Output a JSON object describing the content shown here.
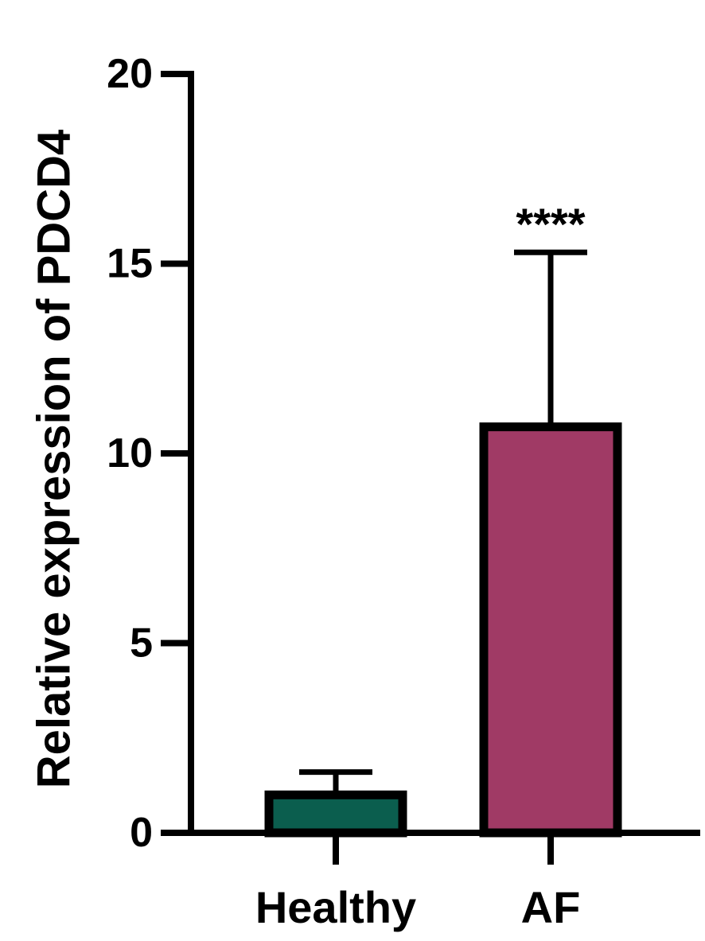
{
  "chart_data": {
    "type": "bar",
    "title": "",
    "xlabel": "",
    "ylabel": "Relative expression of PDCD4",
    "ylim": [
      0,
      20
    ],
    "yticks": [
      "0",
      "5",
      "10",
      "15",
      "20"
    ],
    "categories": [
      "Healthy",
      "AF"
    ],
    "values": [
      1.0,
      10.7
    ],
    "error_upper": [
      1.6,
      15.3
    ],
    "annotations": [
      "",
      "****"
    ],
    "colors": [
      "#0b5e4e",
      "#a03a65"
    ],
    "grid": false,
    "legend": "none"
  }
}
